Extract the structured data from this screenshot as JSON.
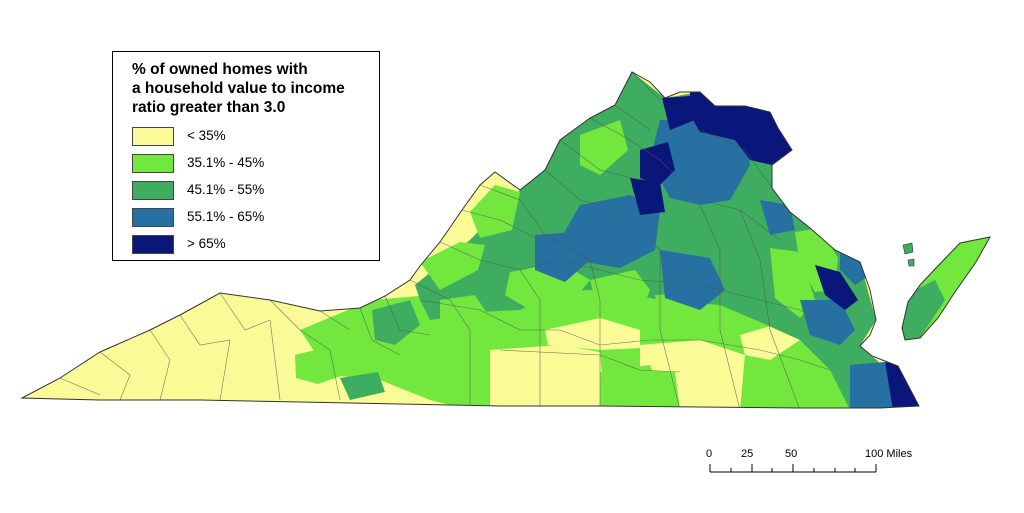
{
  "legend": {
    "title_lines": [
      "% of owned homes with",
      "a household value to income",
      "ratio greater than 3.0"
    ],
    "classes": [
      {
        "label": "< 35%",
        "color": "#fafa96"
      },
      {
        "label": "35.1% - 45%",
        "color": "#72e83e"
      },
      {
        "label": "45.1% - 55%",
        "color": "#3ead5f"
      },
      {
        "label": "55.1% - 65%",
        "color": "#2670a2"
      },
      {
        "label": "> 65%",
        "color": "#0a167a"
      }
    ]
  },
  "scale_bar": {
    "labels": [
      "0",
      "25",
      "50",
      "100 Miles"
    ]
  }
}
